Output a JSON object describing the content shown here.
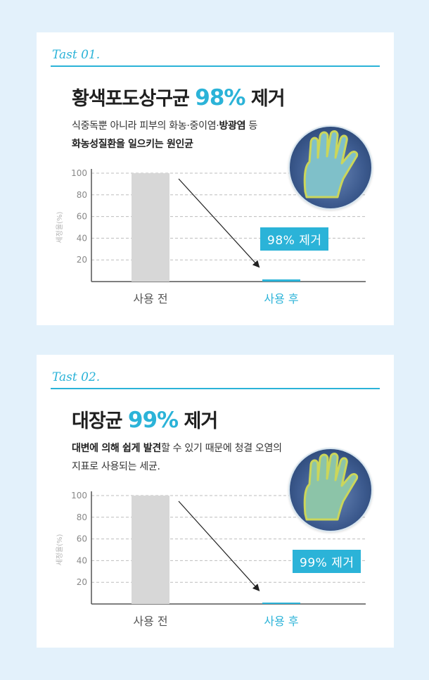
{
  "cards": [
    {
      "tag": "Tast 01.",
      "headline_prefix": "황색포도상구균 ",
      "headline_pct": "98%",
      "headline_suffix": " 제거",
      "desc_line1_normal": "식중독뿐 아니라 피부의 화농·중이염·",
      "desc_line1_bold": "방광염",
      "desc_line1_tail": " 등",
      "desc_line2_bold": "화농성질환을 일으키는 원인균",
      "callout": "98% 제거",
      "chart_data": {
        "type": "bar",
        "categories": [
          "사용 전",
          "사용 후"
        ],
        "values": [
          100,
          2
        ],
        "yticks": [
          20,
          40,
          60,
          80,
          100
        ],
        "ylabel": "세정율(%)",
        "ylim": [
          0,
          100
        ],
        "grid": true,
        "colors": [
          "#d7d7d7",
          "#2bb3d8"
        ],
        "category_colors": [
          "#555555",
          "#2bb3d8"
        ]
      }
    },
    {
      "tag": "Tast 02.",
      "headline_prefix": "대장균 ",
      "headline_pct": "99%",
      "headline_suffix": " 제거",
      "desc_line1_bold": "대변에 의해 쉽게 발견",
      "desc_line1_normal": "할 수 있기 때문에 청결 오염의",
      "desc_line2_normal": "지표로 사용되는 세균.",
      "callout": "99% 제거",
      "chart_data": {
        "type": "bar",
        "categories": [
          "사용 전",
          "사용 후"
        ],
        "values": [
          100,
          1
        ],
        "yticks": [
          20,
          40,
          60,
          80,
          100
        ],
        "ylabel": "세정율(%)",
        "ylim": [
          0,
          100
        ],
        "grid": true,
        "colors": [
          "#d7d7d7",
          "#2bb3d8"
        ],
        "category_colors": [
          "#555555",
          "#2bb3d8"
        ]
      }
    }
  ],
  "icons": [
    "glove-culture-photo-icon",
    "arrow-icon"
  ]
}
